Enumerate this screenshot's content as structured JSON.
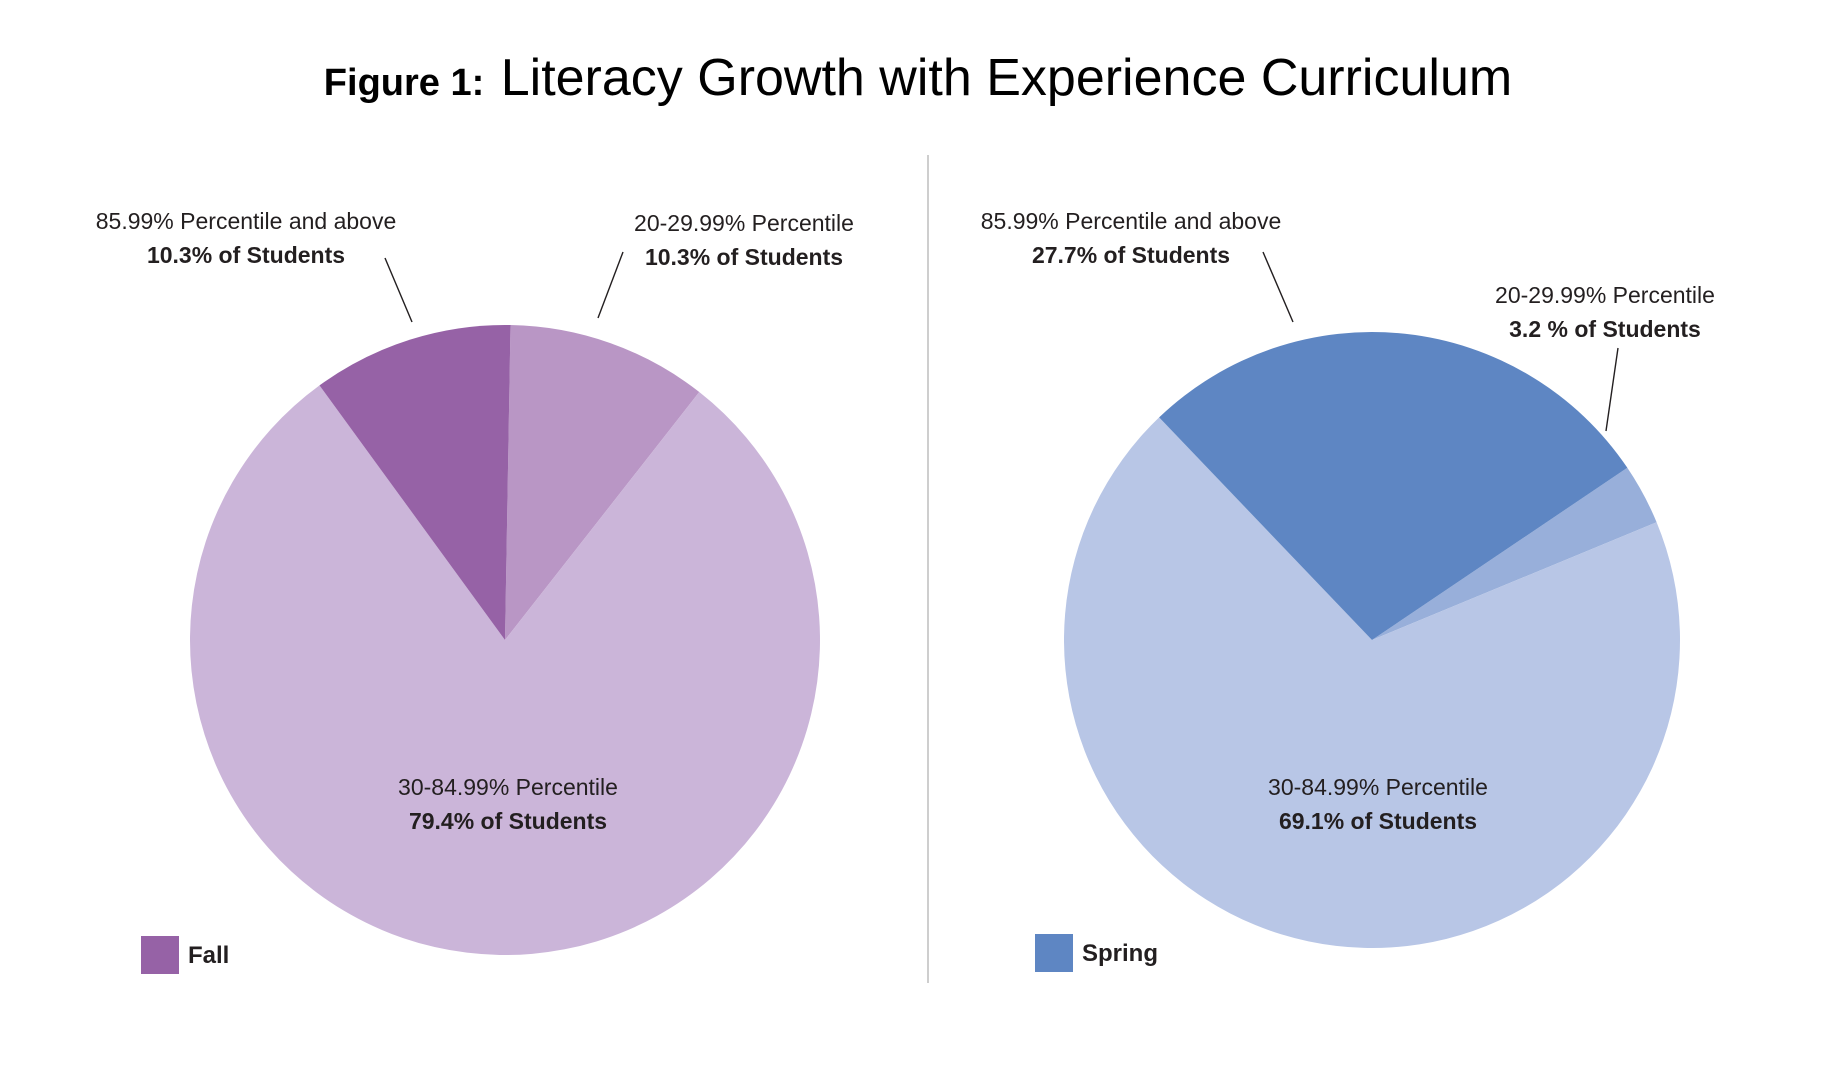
{
  "figure": {
    "title_prefix": "Figure 1:",
    "title_text": "Literacy Growth with Experience Curriculum"
  },
  "chart_data": [
    {
      "type": "pie",
      "legend": "Fall",
      "legend_color": "#9662a6",
      "slices": [
        {
          "range_label": "20-29.99% Percentile",
          "pct_label": "10.3% of Students",
          "value": 10.3,
          "color": "#b996c5"
        },
        {
          "range_label": "30-84.99% Percentile",
          "pct_label": "79.4% of Students",
          "value": 79.4,
          "color": "#cbb5d9"
        },
        {
          "range_label": "85.99% Percentile and above",
          "pct_label": "10.3% of Students",
          "value": 10.3,
          "color": "#9662a6"
        }
      ]
    },
    {
      "type": "pie",
      "legend": "Spring",
      "legend_color": "#5e86c3",
      "slices": [
        {
          "range_label": "20-29.99% Percentile",
          "pct_label": "3.2 % of Students",
          "value": 3.2,
          "color": "#98afda"
        },
        {
          "range_label": "30-84.99% Percentile",
          "pct_label": "69.1% of Students",
          "value": 69.1,
          "color": "#b8c6e6"
        },
        {
          "range_label": "85.99% Percentile and above",
          "pct_label": "27.7% of Students",
          "value": 27.7,
          "color": "#5e86c3"
        }
      ]
    }
  ]
}
